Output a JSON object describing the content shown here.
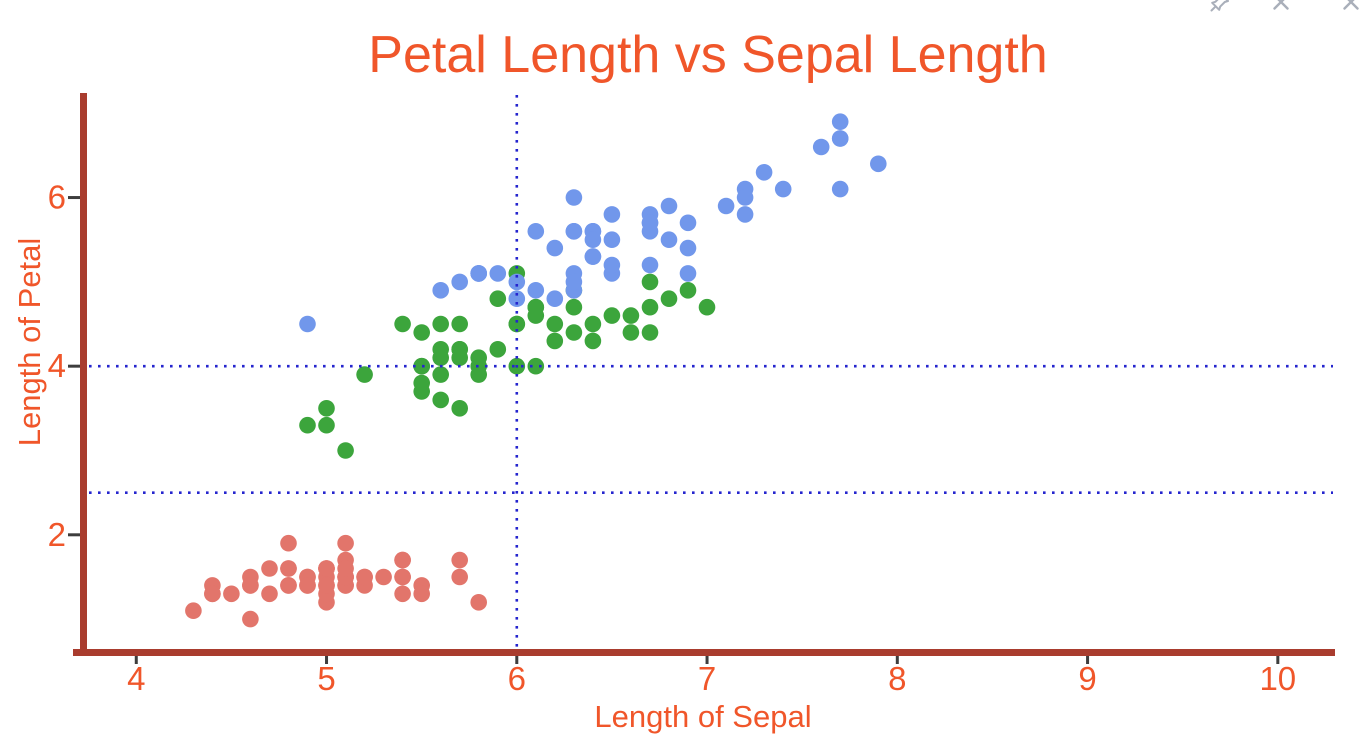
{
  "window_controls": {
    "buttons": [
      {
        "icon": "pin-icon"
      },
      {
        "icon": "close-icon"
      },
      {
        "icon": "close-icon"
      }
    ],
    "icon_color": "#A9AFBA"
  },
  "colors": {
    "title_text": "#F0562A",
    "axis_line": "#A93C2E",
    "tick_mark": "#3D3D3D",
    "tick_label": "#F0562A",
    "reference_line": "#2525CE",
    "background": "#FFFFFF"
  },
  "chart_data": {
    "type": "scatter",
    "title": "Petal Length vs Sepal Length",
    "xlabel": "Length of Sepal",
    "ylabel": "Length of Petal",
    "xlim": [
      3.72,
      10.29
    ],
    "ylim": [
      0.61,
      7.24
    ],
    "x_ticks": [
      4,
      5,
      6,
      7,
      8,
      9,
      10
    ],
    "y_ticks": [
      2,
      4,
      6
    ],
    "grid": false,
    "legend": "none",
    "point_radius_px": 8.3,
    "reference_lines": {
      "style": "dotted",
      "color": "#2525CE",
      "vertical_x": [
        6
      ],
      "horizontal_y": [
        4,
        2.5
      ]
    },
    "series": [
      {
        "name": "red",
        "color": "#E2756B",
        "points": [
          [
            5.1,
            1.4
          ],
          [
            4.9,
            1.4
          ],
          [
            4.7,
            1.3
          ],
          [
            4.6,
            1.5
          ],
          [
            5.0,
            1.4
          ],
          [
            5.4,
            1.7
          ],
          [
            4.6,
            1.4
          ],
          [
            5.0,
            1.5
          ],
          [
            4.4,
            1.4
          ],
          [
            4.9,
            1.5
          ],
          [
            5.4,
            1.5
          ],
          [
            4.8,
            1.6
          ],
          [
            4.8,
            1.4
          ],
          [
            4.3,
            1.1
          ],
          [
            5.8,
            1.2
          ],
          [
            5.7,
            1.5
          ],
          [
            5.4,
            1.3
          ],
          [
            5.1,
            1.4
          ],
          [
            5.7,
            1.7
          ],
          [
            5.1,
            1.5
          ],
          [
            5.4,
            1.7
          ],
          [
            5.1,
            1.5
          ],
          [
            4.6,
            1.0
          ],
          [
            5.1,
            1.7
          ],
          [
            4.8,
            1.9
          ],
          [
            5.0,
            1.6
          ],
          [
            5.0,
            1.6
          ],
          [
            5.2,
            1.5
          ],
          [
            5.2,
            1.4
          ],
          [
            4.7,
            1.6
          ],
          [
            4.8,
            1.6
          ],
          [
            5.4,
            1.5
          ],
          [
            5.2,
            1.5
          ],
          [
            5.5,
            1.4
          ],
          [
            4.9,
            1.5
          ],
          [
            5.0,
            1.2
          ],
          [
            5.5,
            1.3
          ],
          [
            4.9,
            1.4
          ],
          [
            4.4,
            1.3
          ],
          [
            5.1,
            1.5
          ],
          [
            5.0,
            1.3
          ],
          [
            4.5,
            1.3
          ],
          [
            4.4,
            1.3
          ],
          [
            5.0,
            1.6
          ],
          [
            5.1,
            1.9
          ],
          [
            4.8,
            1.4
          ],
          [
            5.1,
            1.6
          ],
          [
            4.6,
            1.4
          ],
          [
            5.3,
            1.5
          ],
          [
            5.0,
            1.4
          ]
        ]
      },
      {
        "name": "green",
        "color": "#3CA53C",
        "points": [
          [
            7.0,
            4.7
          ],
          [
            6.4,
            4.5
          ],
          [
            6.9,
            4.9
          ],
          [
            5.5,
            4.0
          ],
          [
            6.5,
            4.6
          ],
          [
            5.7,
            4.5
          ],
          [
            6.3,
            4.7
          ],
          [
            4.9,
            3.3
          ],
          [
            6.6,
            4.6
          ],
          [
            5.2,
            3.9
          ],
          [
            5.0,
            3.5
          ],
          [
            5.9,
            4.2
          ],
          [
            6.0,
            4.0
          ],
          [
            6.1,
            4.7
          ],
          [
            5.6,
            3.6
          ],
          [
            6.7,
            4.4
          ],
          [
            5.6,
            4.5
          ],
          [
            5.8,
            4.1
          ],
          [
            6.2,
            4.5
          ],
          [
            5.6,
            3.9
          ],
          [
            5.9,
            4.8
          ],
          [
            6.1,
            4.0
          ],
          [
            6.3,
            4.9
          ],
          [
            6.1,
            4.7
          ],
          [
            6.4,
            4.3
          ],
          [
            6.6,
            4.4
          ],
          [
            6.8,
            4.8
          ],
          [
            6.7,
            5.0
          ],
          [
            6.0,
            4.5
          ],
          [
            5.7,
            3.5
          ],
          [
            5.5,
            3.8
          ],
          [
            5.5,
            3.7
          ],
          [
            5.8,
            3.9
          ],
          [
            6.0,
            5.1
          ],
          [
            5.4,
            4.5
          ],
          [
            6.0,
            4.5
          ],
          [
            6.7,
            4.7
          ],
          [
            6.3,
            4.4
          ],
          [
            5.6,
            4.1
          ],
          [
            5.5,
            4.0
          ],
          [
            5.5,
            4.4
          ],
          [
            6.1,
            4.6
          ],
          [
            5.8,
            4.0
          ],
          [
            5.0,
            3.3
          ],
          [
            5.6,
            4.2
          ],
          [
            5.7,
            4.2
          ],
          [
            5.7,
            4.2
          ],
          [
            6.2,
            4.3
          ],
          [
            5.1,
            3.0
          ],
          [
            5.7,
            4.1
          ]
        ]
      },
      {
        "name": "blue",
        "color": "#7197EB",
        "points": [
          [
            6.3,
            6.0
          ],
          [
            5.8,
            5.1
          ],
          [
            7.1,
            5.9
          ],
          [
            6.3,
            5.6
          ],
          [
            6.5,
            5.8
          ],
          [
            7.6,
            6.6
          ],
          [
            4.9,
            4.5
          ],
          [
            7.3,
            6.3
          ],
          [
            6.7,
            5.8
          ],
          [
            7.2,
            6.1
          ],
          [
            6.5,
            5.1
          ],
          [
            6.4,
            5.3
          ],
          [
            6.8,
            5.5
          ],
          [
            5.7,
            5.0
          ],
          [
            5.8,
            5.1
          ],
          [
            6.4,
            5.3
          ],
          [
            6.5,
            5.5
          ],
          [
            7.7,
            6.7
          ],
          [
            7.7,
            6.9
          ],
          [
            6.0,
            5.0
          ],
          [
            6.9,
            5.7
          ],
          [
            5.6,
            4.9
          ],
          [
            7.7,
            6.7
          ],
          [
            6.3,
            4.9
          ],
          [
            6.7,
            5.7
          ],
          [
            7.2,
            6.0
          ],
          [
            6.2,
            4.8
          ],
          [
            6.1,
            4.9
          ],
          [
            6.4,
            5.6
          ],
          [
            7.2,
            5.8
          ],
          [
            7.4,
            6.1
          ],
          [
            7.9,
            6.4
          ],
          [
            6.4,
            5.6
          ],
          [
            6.3,
            5.1
          ],
          [
            6.1,
            5.6
          ],
          [
            7.7,
            6.1
          ],
          [
            6.3,
            5.6
          ],
          [
            6.4,
            5.5
          ],
          [
            6.0,
            4.8
          ],
          [
            6.9,
            5.4
          ],
          [
            6.7,
            5.6
          ],
          [
            6.9,
            5.1
          ],
          [
            5.8,
            5.1
          ],
          [
            6.8,
            5.9
          ],
          [
            6.7,
            5.7
          ],
          [
            6.7,
            5.2
          ],
          [
            6.3,
            5.0
          ],
          [
            6.5,
            5.2
          ],
          [
            6.2,
            5.4
          ],
          [
            5.9,
            5.1
          ]
        ]
      }
    ]
  }
}
